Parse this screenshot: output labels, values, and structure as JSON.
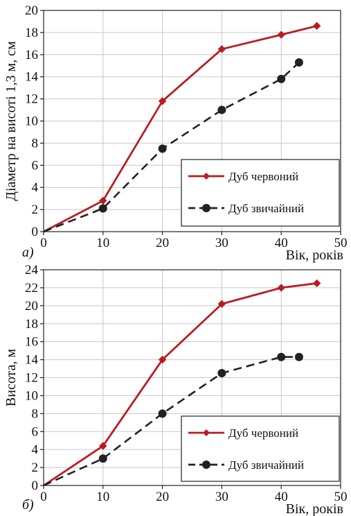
{
  "colors": {
    "red": "#b81c22",
    "dark": "#222222",
    "grid": "#c8c8c8"
  },
  "chart_data": [
    {
      "type": "line",
      "panel_label": "а)",
      "title": "",
      "xlabel": "Вік, років",
      "ylabel": "Діаметр на висоті 1,3 м, см",
      "xlim": [
        0,
        50
      ],
      "ylim": [
        0,
        20
      ],
      "x_ticks": [
        "0",
        "10",
        "20",
        "30",
        "40",
        "50"
      ],
      "y_ticks": [
        "0",
        "2",
        "4",
        "6",
        "8",
        "10",
        "12",
        "14",
        "16",
        "18",
        "20"
      ],
      "grid": true,
      "legend_position": "bottom-right",
      "series": [
        {
          "name": "Дуб червоний",
          "style": "solid",
          "marker": "diamond",
          "color": "#b81c22",
          "points": [
            [
              0,
              0
            ],
            [
              10,
              2.8
            ],
            [
              20,
              11.8
            ],
            [
              30,
              16.5
            ],
            [
              40,
              17.8
            ],
            [
              46,
              18.6
            ]
          ]
        },
        {
          "name": "Дуб звичайний",
          "style": "dashed",
          "marker": "circle",
          "color": "#222222",
          "points": [
            [
              0,
              0
            ],
            [
              10,
              2.1
            ],
            [
              20,
              7.5
            ],
            [
              30,
              11.0
            ],
            [
              40,
              13.8
            ],
            [
              43,
              15.3
            ]
          ]
        }
      ]
    },
    {
      "type": "line",
      "panel_label": "б)",
      "title": "",
      "xlabel": "Вік, років",
      "ylabel": "Висота, м",
      "xlim": [
        0,
        50
      ],
      "ylim": [
        0,
        24
      ],
      "x_ticks": [
        "0",
        "10",
        "20",
        "30",
        "40",
        "50"
      ],
      "y_ticks": [
        "0",
        "2",
        "4",
        "6",
        "8",
        "10",
        "12",
        "14",
        "16",
        "18",
        "20",
        "22",
        "24"
      ],
      "grid": true,
      "legend_position": "bottom-right",
      "series": [
        {
          "name": "Дуб червоний",
          "style": "solid",
          "marker": "diamond",
          "color": "#b81c22",
          "points": [
            [
              0,
              0
            ],
            [
              10,
              4.4
            ],
            [
              20,
              14.0
            ],
            [
              30,
              20.2
            ],
            [
              40,
              22.0
            ],
            [
              46,
              22.5
            ]
          ]
        },
        {
          "name": "Дуб звичайний",
          "style": "dashed",
          "marker": "circle",
          "color": "#222222",
          "points": [
            [
              0,
              0
            ],
            [
              10,
              3.0
            ],
            [
              20,
              8.0
            ],
            [
              30,
              12.5
            ],
            [
              40,
              14.3
            ],
            [
              43,
              14.3
            ]
          ]
        }
      ]
    }
  ]
}
